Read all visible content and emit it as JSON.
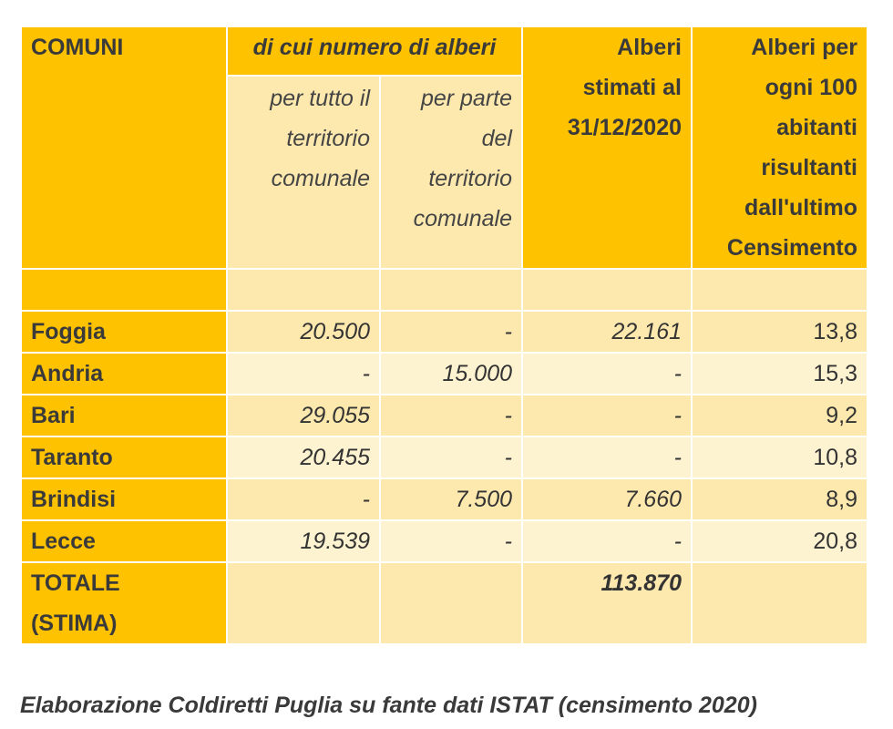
{
  "header": {
    "comuni": "COMUNI",
    "group": "di cui numero di alberi",
    "sub1_lines": [
      "per tutto il",
      "territorio",
      "comunale"
    ],
    "sub2_lines": [
      "per parte",
      "del",
      "territorio",
      "comunale"
    ],
    "stimati_lines": [
      "Alberi",
      "stimati al",
      "31/12/2020"
    ],
    "per100_lines": [
      "Alberi per",
      "ogni 100",
      "abitanti",
      "risultanti",
      "dall'ultimo",
      "Censimento"
    ]
  },
  "rows": [
    {
      "name": "Foggia",
      "tutto": "20.500",
      "parte": "-",
      "stimati": "22.161",
      "per100": "13,8"
    },
    {
      "name": "Andria",
      "tutto": "-",
      "parte": "15.000",
      "stimati": "-",
      "per100": "15,3"
    },
    {
      "name": "Bari",
      "tutto": "29.055",
      "parte": "-",
      "stimati": "-",
      "per100": "9,2"
    },
    {
      "name": "Taranto",
      "tutto": "20.455",
      "parte": "-",
      "stimati": "-",
      "per100": "10,8"
    },
    {
      "name": "Brindisi",
      "tutto": "-",
      "parte": "7.500",
      "stimati": "7.660",
      "per100": "8,9"
    },
    {
      "name": "Lecce",
      "tutto": "19.539",
      "parte": "-",
      "stimati": "-",
      "per100": "20,8"
    }
  ],
  "total": {
    "name_lines": [
      "TOTALE",
      "(STIMA)"
    ],
    "stimati": "113.870"
  },
  "caption": "Elaborazione Coldiretti Puglia su fante dati ISTAT (censimento 2020)",
  "colors": {
    "header": "#fec200",
    "cell": "#fde9ae",
    "cell_alt": "#fef3d0"
  }
}
